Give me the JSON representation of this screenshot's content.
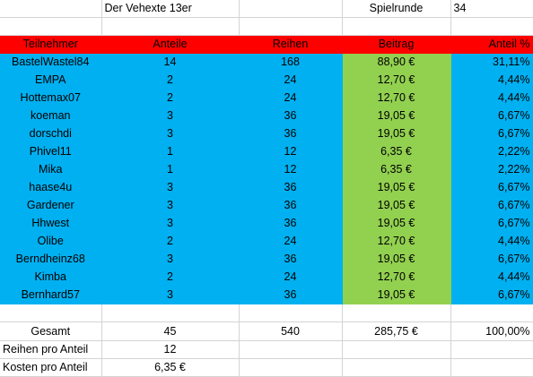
{
  "top": {
    "title": "Der Vehexte 13er",
    "round_label": "Spielrunde",
    "round_value": "34"
  },
  "headers": [
    "Teilnehmer",
    "Anteile",
    "Reihen",
    "Beitrag",
    "Anteil %"
  ],
  "rows": [
    {
      "name": "BastelWastel84",
      "shares": "14",
      "rows": "168",
      "fee": "88,90 €",
      "pct": "31,11%"
    },
    {
      "name": "EMPA",
      "shares": "2",
      "rows": "24",
      "fee": "12,70 €",
      "pct": "4,44%"
    },
    {
      "name": "Hottemax07",
      "shares": "2",
      "rows": "24",
      "fee": "12,70 €",
      "pct": "4,44%"
    },
    {
      "name": "koeman",
      "shares": "3",
      "rows": "36",
      "fee": "19,05 €",
      "pct": "6,67%"
    },
    {
      "name": "dorschdi",
      "shares": "3",
      "rows": "36",
      "fee": "19,05 €",
      "pct": "6,67%"
    },
    {
      "name": "Phivel11",
      "shares": "1",
      "rows": "12",
      "fee": "6,35 €",
      "pct": "2,22%"
    },
    {
      "name": "Mika",
      "shares": "1",
      "rows": "12",
      "fee": "6,35 €",
      "pct": "2,22%"
    },
    {
      "name": "haase4u",
      "shares": "3",
      "rows": "36",
      "fee": "19,05 €",
      "pct": "6,67%"
    },
    {
      "name": "Gardener",
      "shares": "3",
      "rows": "36",
      "fee": "19,05 €",
      "pct": "6,67%"
    },
    {
      "name": "Hhwest",
      "shares": "3",
      "rows": "36",
      "fee": "19,05 €",
      "pct": "6,67%"
    },
    {
      "name": "Olibe",
      "shares": "2",
      "rows": "24",
      "fee": "12,70 €",
      "pct": "4,44%"
    },
    {
      "name": "Berndheinz68",
      "shares": "3",
      "rows": "36",
      "fee": "19,05 €",
      "pct": "6,67%"
    },
    {
      "name": "Kimba",
      "shares": "2",
      "rows": "24",
      "fee": "12,70 €",
      "pct": "4,44%"
    },
    {
      "name": "Bernhard57",
      "shares": "3",
      "rows": "36",
      "fee": "19,05 €",
      "pct": "6,67%"
    }
  ],
  "totals": {
    "label": "Gesamt",
    "shares": "45",
    "rows": "540",
    "fee": "285,75 €",
    "pct": "100,00%"
  },
  "summary": {
    "rows_per_share_label": "Reihen pro Anteil",
    "rows_per_share_value": "12",
    "cost_per_share_label": "Kosten pro Anteil",
    "cost_per_share_value": "6,35 €"
  },
  "colors": {
    "header": "#ff0000",
    "rows": "#00b0f0",
    "fee_column": "#92d050"
  }
}
